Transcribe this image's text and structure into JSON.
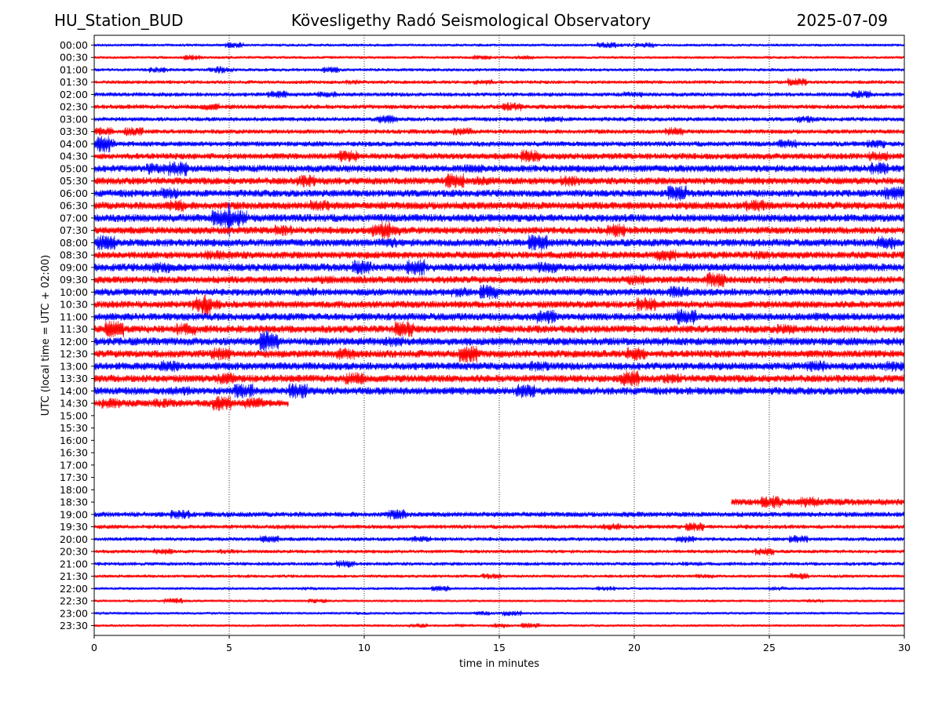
{
  "header": {
    "station": "HU_Station_BUD",
    "title": "Kövesligethy Radó Seismological Observatory",
    "date": "2025-07-09"
  },
  "chart_data": {
    "type": "line",
    "subtype": "helicorder",
    "xlabel": "time in minutes",
    "ylabel": "UTC (local time = UTC + 02:00)",
    "xlim": [
      0,
      30
    ],
    "xticks": [
      "0",
      "5",
      "10",
      "15",
      "20",
      "25",
      "30"
    ],
    "grid": "vertical dotted lines at x ticks",
    "colors": {
      "even_rows": "#0000ff",
      "odd_rows": "#ff0000",
      "frame": "#000000",
      "grid": "#000000"
    },
    "rows": [
      {
        "label": "00:00",
        "start": 0,
        "end": 30,
        "amp": 0.22
      },
      {
        "label": "00:30",
        "start": 0,
        "end": 30,
        "amp": 0.22
      },
      {
        "label": "01:00",
        "start": 0,
        "end": 30,
        "amp": 0.25
      },
      {
        "label": "01:30",
        "start": 0,
        "end": 30,
        "amp": 0.28
      },
      {
        "label": "02:00",
        "start": 0,
        "end": 30,
        "amp": 0.32
      },
      {
        "label": "02:30",
        "start": 0,
        "end": 30,
        "amp": 0.35
      },
      {
        "label": "03:00",
        "start": 0,
        "end": 30,
        "amp": 0.33
      },
      {
        "label": "03:30",
        "start": 0,
        "end": 30,
        "amp": 0.35
      },
      {
        "label": "04:00",
        "start": 0,
        "end": 30,
        "amp": 0.4
      },
      {
        "label": "04:30",
        "start": 0,
        "end": 30,
        "amp": 0.48
      },
      {
        "label": "05:00",
        "start": 0,
        "end": 30,
        "amp": 0.55
      },
      {
        "label": "05:30",
        "start": 0,
        "end": 30,
        "amp": 0.55
      },
      {
        "label": "06:00",
        "start": 0,
        "end": 30,
        "amp": 0.55
      },
      {
        "label": "06:30",
        "start": 0,
        "end": 30,
        "amp": 0.58
      },
      {
        "label": "07:00",
        "start": 0,
        "end": 30,
        "amp": 0.6
      },
      {
        "label": "07:30",
        "start": 0,
        "end": 30,
        "amp": 0.55
      },
      {
        "label": "08:00",
        "start": 0,
        "end": 30,
        "amp": 0.58
      },
      {
        "label": "08:30",
        "start": 0,
        "end": 30,
        "amp": 0.55
      },
      {
        "label": "09:00",
        "start": 0,
        "end": 30,
        "amp": 0.6
      },
      {
        "label": "09:30",
        "start": 0,
        "end": 30,
        "amp": 0.55
      },
      {
        "label": "10:00",
        "start": 0,
        "end": 30,
        "amp": 0.55
      },
      {
        "label": "10:30",
        "start": 0,
        "end": 30,
        "amp": 0.55
      },
      {
        "label": "11:00",
        "start": 0,
        "end": 30,
        "amp": 0.58
      },
      {
        "label": "11:30",
        "start": 0,
        "end": 30,
        "amp": 0.58
      },
      {
        "label": "12:00",
        "start": 0,
        "end": 30,
        "amp": 0.6
      },
      {
        "label": "12:30",
        "start": 0,
        "end": 30,
        "amp": 0.58
      },
      {
        "label": "13:00",
        "start": 0,
        "end": 30,
        "amp": 0.58
      },
      {
        "label": "13:30",
        "start": 0,
        "end": 30,
        "amp": 0.58
      },
      {
        "label": "14:00",
        "start": 0,
        "end": 30,
        "amp": 0.58
      },
      {
        "label": "14:30",
        "start": 0,
        "end": 7.2,
        "amp": 0.55
      },
      {
        "label": "15:00",
        "start": null,
        "end": null,
        "amp": 0
      },
      {
        "label": "15:30",
        "start": null,
        "end": null,
        "amp": 0
      },
      {
        "label": "16:00",
        "start": null,
        "end": null,
        "amp": 0
      },
      {
        "label": "16:30",
        "start": null,
        "end": null,
        "amp": 0
      },
      {
        "label": "17:00",
        "start": null,
        "end": null,
        "amp": 0
      },
      {
        "label": "17:30",
        "start": null,
        "end": null,
        "amp": 0
      },
      {
        "label": "18:00",
        "start": null,
        "end": null,
        "amp": 0
      },
      {
        "label": "18:30",
        "start": 23.6,
        "end": 30,
        "amp": 0.5
      },
      {
        "label": "19:00",
        "start": 0,
        "end": 30,
        "amp": 0.4
      },
      {
        "label": "19:30",
        "start": 0,
        "end": 30,
        "amp": 0.32
      },
      {
        "label": "20:00",
        "start": 0,
        "end": 30,
        "amp": 0.3
      },
      {
        "label": "20:30",
        "start": 0,
        "end": 30,
        "amp": 0.28
      },
      {
        "label": "21:00",
        "start": 0,
        "end": 30,
        "amp": 0.28
      },
      {
        "label": "21:30",
        "start": 0,
        "end": 30,
        "amp": 0.25
      },
      {
        "label": "22:00",
        "start": 0,
        "end": 30,
        "amp": 0.22
      },
      {
        "label": "22:30",
        "start": 0,
        "end": 30,
        "amp": 0.2
      },
      {
        "label": "23:00",
        "start": 0,
        "end": 30,
        "amp": 0.2
      },
      {
        "label": "23:30",
        "start": 0,
        "end": 30,
        "amp": 0.2
      }
    ]
  }
}
